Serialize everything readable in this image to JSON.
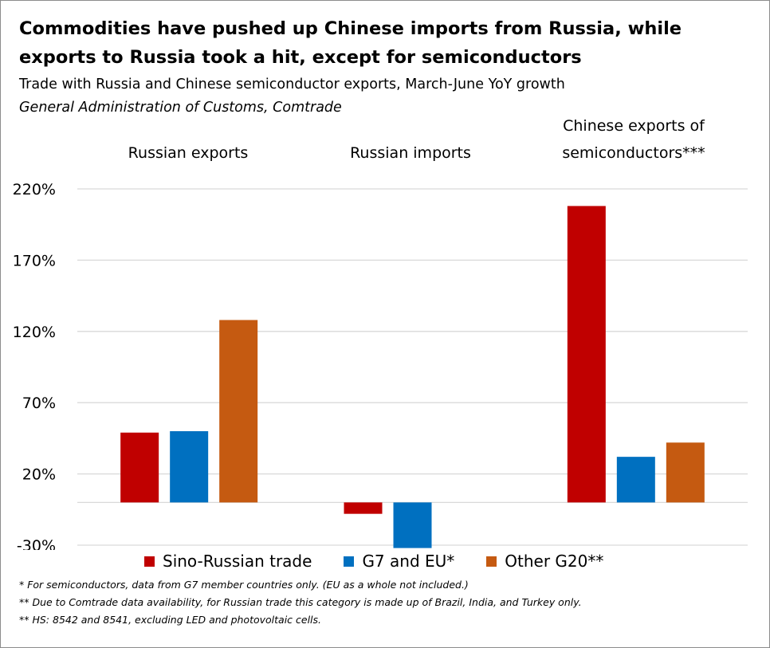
{
  "header": {
    "title": "Commodities have pushed up Chinese imports from Russia, while exports to Russia took a hit, except for semiconductors",
    "subtitle": "Trade with Russia and Chinese semiconductor exports, March-June YoY growth",
    "source": "General Administration of Customs, Comtrade"
  },
  "chart_data": {
    "type": "bar",
    "categories": [
      "Russian exports",
      "Russian imports",
      "Chinese exports of semiconductors***"
    ],
    "category_label_lines": [
      [
        "Russian exports"
      ],
      [
        "Russian imports"
      ],
      [
        "Chinese exports of",
        "semiconductors***"
      ]
    ],
    "series": [
      {
        "name": "Sino-Russian trade",
        "color": "#c00000",
        "values": [
          49,
          -8,
          208
        ]
      },
      {
        "name": "G7 and EU*",
        "color": "#0070c0",
        "values": [
          50,
          -32,
          32
        ]
      },
      {
        "name": "Other G20**",
        "color": "#c55a11",
        "values": [
          128,
          null,
          42
        ]
      }
    ],
    "y_ticks": [
      -30,
      20,
      70,
      120,
      170,
      220
    ],
    "y_tick_labels": [
      "-30%",
      "20%",
      "70%",
      "120%",
      "170%",
      "220%"
    ],
    "ylim": [
      -30,
      220
    ],
    "grid": true,
    "legend_position": "bottom"
  },
  "notes": [
    "* For semiconductors, data from G7 member countries only. (EU as a whole not included.)",
    "** Due to Comtrade data availability, for Russian trade this category is made up of Brazil, India, and Turkey only.",
    "** HS: 8542 and 8541, excluding LED and photovoltaic cells."
  ]
}
